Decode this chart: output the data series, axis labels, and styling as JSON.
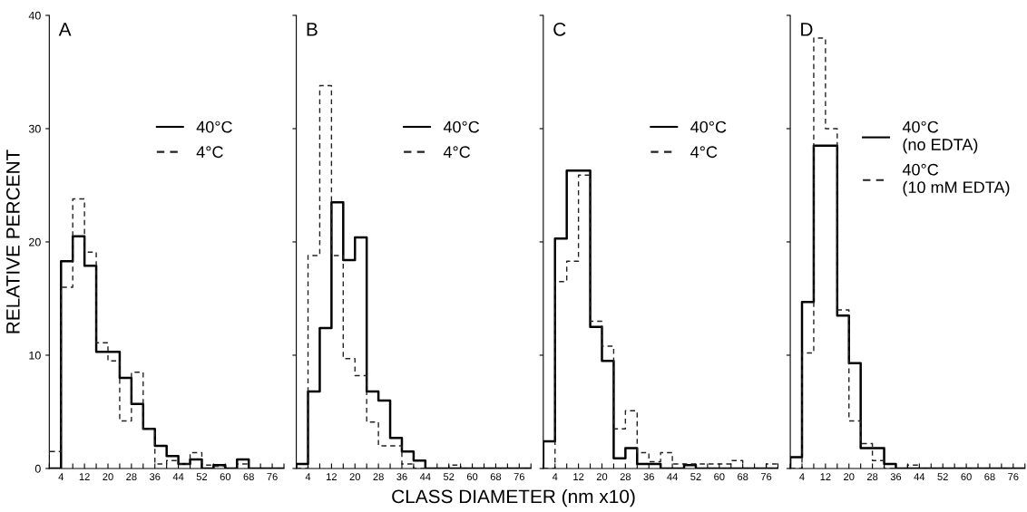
{
  "chart_data": [
    {
      "type": "histogram",
      "title": "A",
      "ylabel": "RELATIVE PERCENT",
      "bins": [
        0,
        4,
        8,
        12,
        16,
        20,
        24,
        28,
        32,
        36,
        40,
        44,
        48,
        52,
        56,
        60,
        64,
        68,
        72,
        76,
        80
      ],
      "xlim": [
        0,
        80
      ],
      "ylim": [
        0,
        40
      ],
      "yticks": [
        0,
        10,
        20,
        30,
        40
      ],
      "xticks": [
        {
          "value": 0,
          "label": null
        },
        4,
        {
          "value": 8,
          "label": null
        },
        12,
        {
          "value": 16,
          "label": null
        },
        20,
        {
          "value": 24,
          "label": null
        },
        28,
        {
          "value": 32,
          "label": null
        },
        36,
        {
          "value": 40,
          "label": null
        },
        44,
        {
          "value": 48,
          "label": null
        },
        52,
        {
          "value": 56,
          "label": null
        },
        60,
        {
          "value": 64,
          "label": null
        },
        68,
        {
          "value": 72,
          "label": null
        },
        76,
        {
          "value": 80,
          "label": null
        }
      ],
      "grid": false,
      "legend": "top",
      "series": [
        {
          "name": "40°C",
          "color": "#000000",
          "line_style": "solid",
          "values": [
            0,
            18.3,
            20.5,
            17.9,
            10.3,
            10.3,
            8,
            5.7,
            3.5,
            2,
            1.1,
            0.4,
            0.8,
            0,
            0.3,
            0,
            0.8,
            0,
            0,
            0
          ]
        },
        {
          "name": "4°C",
          "color": "#222222",
          "line_style": "dashed",
          "values": [
            1.5,
            16,
            23.8,
            19.1,
            11.1,
            9.5,
            4.2,
            8.5,
            3.5,
            0.4,
            0.7,
            0.4,
            1.4,
            0.3,
            0.2,
            0,
            0.4,
            0,
            0,
            0
          ]
        }
      ]
    },
    {
      "type": "histogram",
      "title": "B",
      "xlabel": "CLASS DIAMETER (nm x10)",
      "bins": [
        0,
        4,
        8,
        12,
        16,
        20,
        24,
        28,
        32,
        36,
        40,
        44,
        48,
        52,
        56,
        60,
        64,
        68,
        72,
        76,
        80
      ],
      "xlim": [
        0,
        80
      ],
      "ylim": [
        0,
        40
      ],
      "yticks": [
        {
          "value": 0,
          "label": null
        },
        {
          "value": 10,
          "label": null
        },
        {
          "value": 20,
          "label": null
        },
        {
          "value": 30,
          "label": null
        },
        {
          "value": 40,
          "label": null
        }
      ],
      "xticks": [
        {
          "value": 0,
          "label": null
        },
        4,
        {
          "value": 8,
          "label": null
        },
        12,
        {
          "value": 16,
          "label": null
        },
        20,
        {
          "value": 24,
          "label": null
        },
        28,
        {
          "value": 32,
          "label": null
        },
        36,
        {
          "value": 40,
          "label": null
        },
        44,
        {
          "value": 48,
          "label": null
        },
        52,
        {
          "value": 56,
          "label": null
        },
        60,
        {
          "value": 64,
          "label": null
        },
        68,
        {
          "value": 72,
          "label": null
        },
        76,
        {
          "value": 80,
          "label": null
        }
      ],
      "tick_labels": "x",
      "grid": false,
      "legend": "top",
      "series": [
        {
          "name": "40°C",
          "color": "#000000",
          "line_style": "solid",
          "values": [
            0.4,
            6.8,
            12.4,
            23.5,
            18.4,
            20.4,
            6.8,
            6.0,
            2.7,
            1.5,
            0.7,
            0,
            0,
            0,
            0,
            0,
            0,
            0,
            0,
            0
          ]
        },
        {
          "name": "4°C",
          "color": "#222222",
          "line_style": "dashed",
          "values": [
            0,
            18.8,
            33.8,
            18.8,
            9.7,
            8.2,
            4.1,
            2,
            2,
            0.4,
            0,
            0,
            0,
            0.3,
            0,
            0,
            0,
            0,
            0,
            0
          ]
        }
      ]
    },
    {
      "type": "histogram",
      "title": "C",
      "bins": [
        0,
        4,
        8,
        12,
        16,
        20,
        24,
        28,
        32,
        36,
        40,
        44,
        48,
        52,
        56,
        60,
        64,
        68,
        72,
        76,
        80
      ],
      "xlim": [
        0,
        80
      ],
      "ylim": [
        0,
        40
      ],
      "yticks": [
        {
          "value": 0,
          "label": null
        },
        {
          "value": 10,
          "label": null
        },
        {
          "value": 20,
          "label": null
        },
        {
          "value": 30,
          "label": null
        },
        {
          "value": 40,
          "label": null
        }
      ],
      "xticks": [
        {
          "value": 0,
          "label": null
        },
        4,
        {
          "value": 8,
          "label": null
        },
        12,
        {
          "value": 16,
          "label": null
        },
        20,
        {
          "value": 24,
          "label": null
        },
        28,
        {
          "value": 32,
          "label": null
        },
        36,
        {
          "value": 40,
          "label": null
        },
        44,
        {
          "value": 48,
          "label": null
        },
        52,
        {
          "value": 56,
          "label": null
        },
        60,
        {
          "value": 64,
          "label": null
        },
        68,
        {
          "value": 72,
          "label": null
        },
        76,
        {
          "value": 80,
          "label": null
        }
      ],
      "tick_labels": "x",
      "grid": false,
      "legend": "top",
      "series": [
        {
          "name": "40°C",
          "color": "#000000",
          "line_style": "solid",
          "values": [
            2.4,
            20.3,
            26.3,
            26.3,
            12.5,
            9.5,
            0.9,
            1.8,
            0.4,
            0.4,
            0,
            0,
            0.3,
            0,
            0,
            0,
            0,
            0,
            0,
            0
          ]
        },
        {
          "name": "4°C",
          "color": "#222222",
          "line_style": "dashed",
          "values": [
            0,
            16.5,
            18.3,
            25.9,
            13,
            10.8,
            3.5,
            5.1,
            1.4,
            0.6,
            1.4,
            0.4,
            0.4,
            0.4,
            0.4,
            0.4,
            0.7,
            0,
            0,
            0.4
          ]
        }
      ]
    },
    {
      "type": "histogram",
      "title": "D",
      "bins": [
        0,
        4,
        8,
        12,
        16,
        20,
        24,
        28,
        32,
        36,
        40,
        44,
        48,
        52,
        56,
        60,
        64,
        68,
        72,
        76,
        80
      ],
      "xlim": [
        0,
        80
      ],
      "ylim": [
        0,
        40
      ],
      "yticks": [
        {
          "value": 0,
          "label": null
        },
        {
          "value": 10,
          "label": null
        },
        {
          "value": 20,
          "label": null
        },
        {
          "value": 30,
          "label": null
        },
        {
          "value": 40,
          "label": null
        }
      ],
      "xticks": [
        {
          "value": 0,
          "label": null
        },
        4,
        {
          "value": 8,
          "label": null
        },
        12,
        {
          "value": 16,
          "label": null
        },
        20,
        {
          "value": 24,
          "label": null
        },
        28,
        {
          "value": 32,
          "label": null
        },
        36,
        {
          "value": 40,
          "label": null
        },
        44,
        {
          "value": 48,
          "label": null
        },
        52,
        {
          "value": 56,
          "label": null
        },
        60,
        {
          "value": 64,
          "label": null
        },
        68,
        {
          "value": 72,
          "label": null
        },
        76,
        {
          "value": 80,
          "label": null
        }
      ],
      "tick_labels": "x",
      "grid": false,
      "legend": "top right",
      "series": [
        {
          "name": "40°C\n(no EDTA)",
          "color": "#000000",
          "line_style": "solid",
          "values": [
            1,
            14.7,
            28.5,
            28.5,
            13.5,
            9.3,
            1.8,
            1.8,
            0.4,
            0,
            0,
            0,
            0,
            0,
            0,
            0,
            0,
            0,
            0,
            0
          ]
        },
        {
          "name": "40°C\n(10 mM EDTA)",
          "color": "#222222",
          "line_style": "dashed",
          "values": [
            0,
            10.2,
            38,
            30,
            14,
            4.2,
            2.2,
            0.7,
            0,
            0,
            0.3,
            0,
            0,
            0,
            0,
            0,
            0,
            0,
            0,
            0
          ]
        }
      ]
    }
  ]
}
